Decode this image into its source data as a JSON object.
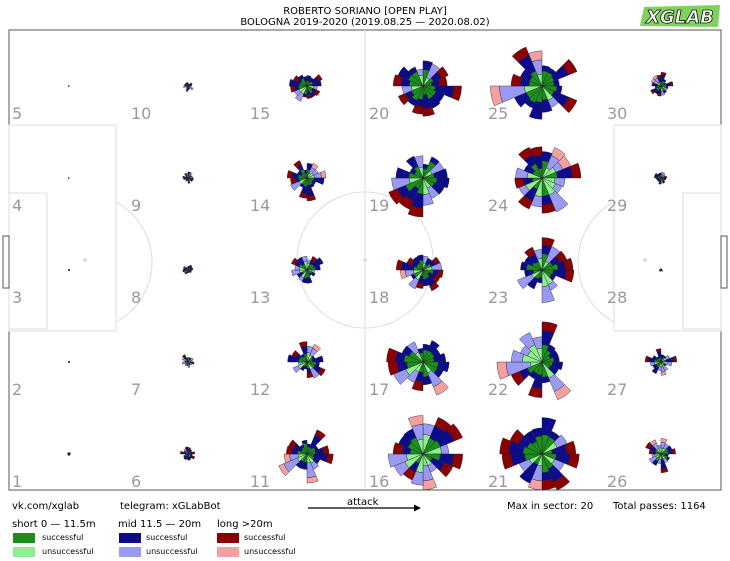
{
  "header": {
    "title": "ROBERTO SORIANO [OPEN PLAY]",
    "subtitle": "BOLOGNA 2019-2020 (2019.08.25 — 2020.08.02)",
    "logo_text": "XGLAB"
  },
  "footer": {
    "vk": "vk.com/xglab",
    "telegram": "telegram: xGLabBot",
    "attack": "attack",
    "max_in_sector": "Max in sector: 20",
    "total_passes": "Total passes: 1164"
  },
  "legend": {
    "groups": [
      {
        "title": "short 0 — 11.5m",
        "successful": "successful",
        "unsuccessful": "unsuccessful",
        "color_succ": "#1a8f1a",
        "color_unsucc": "#90ee90"
      },
      {
        "title": "mid 11.5 — 20m",
        "successful": "successful",
        "unsuccessful": "unsuccessful",
        "color_succ": "#0b0b8c",
        "color_unsucc": "#9a9af5"
      },
      {
        "title": "long >20m",
        "successful": "successful",
        "unsuccessful": "unsuccessful",
        "color_succ": "#8b0000",
        "color_unsucc": "#f5a0a0"
      }
    ]
  },
  "chart_data": {
    "type": "radial pass sonar grid",
    "max_in_sector": 20,
    "total_passes": 1164,
    "zone_labels": [
      "1",
      "2",
      "3",
      "4",
      "5",
      "6",
      "7",
      "8",
      "9",
      "10",
      "11",
      "12",
      "13",
      "14",
      "15",
      "16",
      "17",
      "18",
      "19",
      "20",
      "21",
      "22",
      "23",
      "24",
      "25",
      "26",
      "27",
      "28",
      "29",
      "30"
    ],
    "zones": [
      {
        "zone": 1,
        "level": 0.05
      },
      {
        "zone": 2,
        "level": 0.0
      },
      {
        "zone": 3,
        "level": 0.0
      },
      {
        "zone": 4,
        "level": 0.03
      },
      {
        "zone": 5,
        "level": 0.03
      },
      {
        "zone": 6,
        "level": 0.2
      },
      {
        "zone": 7,
        "level": 0.18
      },
      {
        "zone": 8,
        "level": 0.15
      },
      {
        "zone": 9,
        "level": 0.16
      },
      {
        "zone": 10,
        "level": 0.12
      },
      {
        "zone": 11,
        "level": 0.6
      },
      {
        "zone": 12,
        "level": 0.5
      },
      {
        "zone": 13,
        "level": 0.45
      },
      {
        "zone": 14,
        "level": 0.5
      },
      {
        "zone": 15,
        "level": 0.45
      },
      {
        "zone": 16,
        "level": 1.0
      },
      {
        "zone": 17,
        "level": 1.0
      },
      {
        "zone": 18,
        "level": 0.55
      },
      {
        "zone": 19,
        "level": 1.0
      },
      {
        "zone": 20,
        "level": 0.85
      },
      {
        "zone": 21,
        "level": 1.0
      },
      {
        "zone": 22,
        "level": 1.0
      },
      {
        "zone": 23,
        "level": 0.85
      },
      {
        "zone": 24,
        "level": 0.95
      },
      {
        "zone": 25,
        "level": 1.0
      },
      {
        "zone": 26,
        "level": 0.4
      },
      {
        "zone": 27,
        "level": 0.35
      },
      {
        "zone": 28,
        "level": 0.05
      },
      {
        "zone": 29,
        "level": 0.18
      },
      {
        "zone": 30,
        "level": 0.3
      }
    ]
  }
}
